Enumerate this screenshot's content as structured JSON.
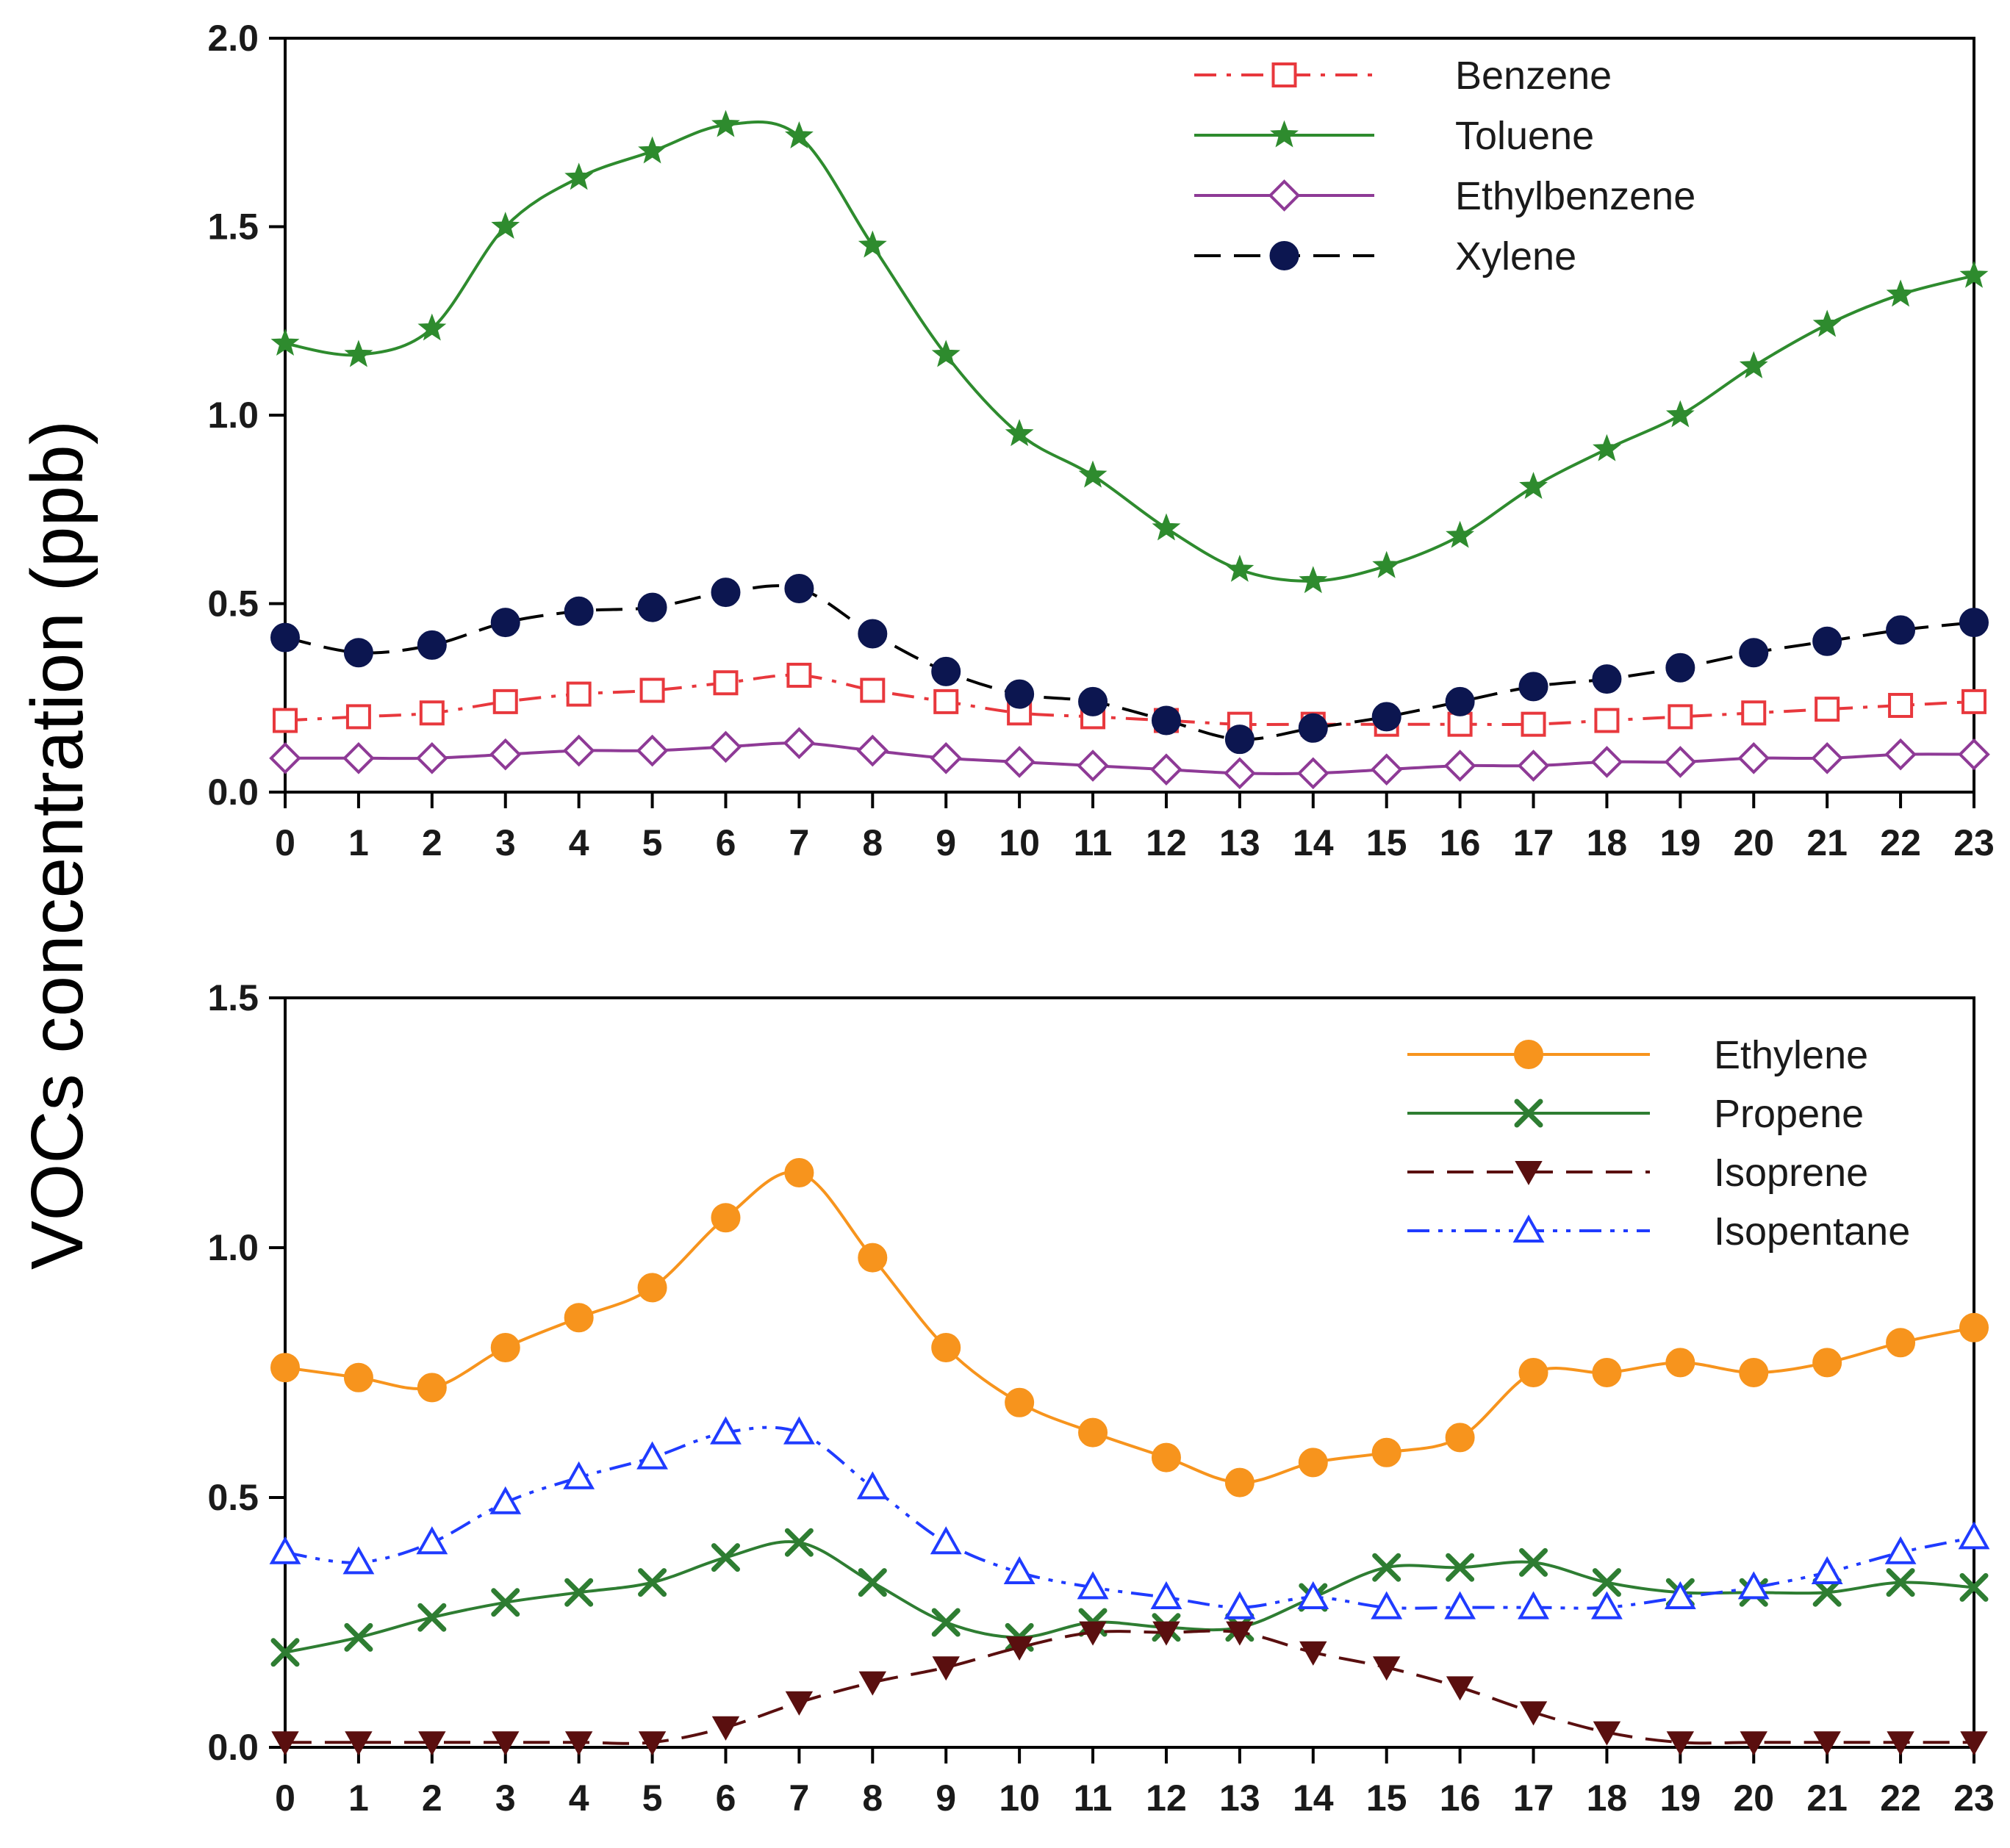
{
  "shared_ylabel": "VOCs concentration (ppb)",
  "chart_data": [
    {
      "type": "line",
      "title": "",
      "xlabel": "",
      "ylabel": "VOCs concentration (ppb)",
      "xlim": [
        0,
        23
      ],
      "ylim": [
        0,
        2.0
      ],
      "x": [
        0,
        1,
        2,
        3,
        4,
        5,
        6,
        7,
        8,
        9,
        10,
        11,
        12,
        13,
        14,
        15,
        16,
        17,
        18,
        19,
        20,
        21,
        22,
        23
      ],
      "x_tick_labels": [
        "0",
        "1",
        "2",
        "3",
        "4",
        "5",
        "6",
        "7",
        "8",
        "9",
        "10",
        "11",
        "12",
        "13",
        "14",
        "15",
        "16",
        "17",
        "18",
        "19",
        "20",
        "21",
        "22",
        "23"
      ],
      "y_ticks": [
        0,
        0.5,
        1.0,
        1.5,
        2.0
      ],
      "y_tick_labels": [
        "0.0",
        "0.5",
        "1.0",
        "1.5",
        "2.0"
      ],
      "grid": false,
      "legend_position": "top-right",
      "series": [
        {
          "name": "Benzene",
          "color": "#e8383d",
          "dash": "dashdot",
          "marker": "square-open",
          "values": [
            0.19,
            0.2,
            0.21,
            0.24,
            0.26,
            0.27,
            0.29,
            0.31,
            0.27,
            0.24,
            0.21,
            0.2,
            0.19,
            0.18,
            0.18,
            0.18,
            0.18,
            0.18,
            0.19,
            0.2,
            0.21,
            0.22,
            0.23,
            0.24
          ]
        },
        {
          "name": "Toluene",
          "color": "#2e8b2e",
          "dash": "solid",
          "marker": "star",
          "values": [
            1.19,
            1.16,
            1.23,
            1.5,
            1.63,
            1.7,
            1.77,
            1.74,
            1.45,
            1.16,
            0.95,
            0.84,
            0.7,
            0.59,
            0.56,
            0.6,
            0.68,
            0.81,
            0.91,
            1.0,
            1.13,
            1.24,
            1.32,
            1.37
          ]
        },
        {
          "name": "Ethylbenzene",
          "color": "#8e3a96",
          "dash": "solid",
          "marker": "diamond-open",
          "values": [
            0.09,
            0.09,
            0.09,
            0.1,
            0.11,
            0.11,
            0.12,
            0.13,
            0.11,
            0.09,
            0.08,
            0.07,
            0.06,
            0.05,
            0.05,
            0.06,
            0.07,
            0.07,
            0.08,
            0.08,
            0.09,
            0.09,
            0.1,
            0.1
          ]
        },
        {
          "name": "Xylene",
          "color": "#0c1650",
          "line_color": "#000000",
          "dash": "dashed",
          "marker": "circle",
          "values": [
            0.41,
            0.37,
            0.39,
            0.45,
            0.48,
            0.49,
            0.53,
            0.54,
            0.42,
            0.32,
            0.26,
            0.24,
            0.19,
            0.14,
            0.17,
            0.2,
            0.24,
            0.28,
            0.3,
            0.33,
            0.37,
            0.4,
            0.43,
            0.45
          ]
        }
      ]
    },
    {
      "type": "line",
      "title": "",
      "xlabel": "",
      "ylabel": "VOCs concentration (ppb)",
      "xlim": [
        0,
        23
      ],
      "ylim": [
        0,
        1.5
      ],
      "x": [
        0,
        1,
        2,
        3,
        4,
        5,
        6,
        7,
        8,
        9,
        10,
        11,
        12,
        13,
        14,
        15,
        16,
        17,
        18,
        19,
        20,
        21,
        22,
        23
      ],
      "x_tick_labels": [
        "0",
        "1",
        "2",
        "3",
        "4",
        "5",
        "6",
        "7",
        "8",
        "9",
        "10",
        "11",
        "12",
        "13",
        "14",
        "15",
        "16",
        "17",
        "18",
        "19",
        "20",
        "21",
        "22",
        "23"
      ],
      "y_ticks": [
        0,
        0.5,
        1.0,
        1.5
      ],
      "y_tick_labels": [
        "0.0",
        "0.5",
        "1.0",
        "1.5"
      ],
      "grid": false,
      "legend_position": "top-right",
      "series": [
        {
          "name": "Ethylene",
          "color": "#f7941d",
          "dash": "solid",
          "marker": "circle",
          "values": [
            0.76,
            0.74,
            0.72,
            0.8,
            0.86,
            0.92,
            1.06,
            1.15,
            0.98,
            0.8,
            0.69,
            0.63,
            0.58,
            0.53,
            0.57,
            0.59,
            0.62,
            0.75,
            0.75,
            0.77,
            0.75,
            0.77,
            0.81,
            0.84
          ]
        },
        {
          "name": "Propene",
          "color": "#2e7d32",
          "dash": "solid",
          "marker": "x",
          "values": [
            0.19,
            0.22,
            0.26,
            0.29,
            0.31,
            0.33,
            0.38,
            0.41,
            0.33,
            0.25,
            0.22,
            0.25,
            0.24,
            0.24,
            0.3,
            0.36,
            0.36,
            0.37,
            0.33,
            0.31,
            0.31,
            0.31,
            0.33,
            0.32
          ]
        },
        {
          "name": "Isoprene",
          "color": "#5a0f0f",
          "dash": "dashed",
          "marker": "triangle-down",
          "values": [
            0.01,
            0.01,
            0.01,
            0.01,
            0.01,
            0.01,
            0.04,
            0.09,
            0.13,
            0.16,
            0.2,
            0.23,
            0.23,
            0.23,
            0.19,
            0.16,
            0.12,
            0.07,
            0.03,
            0.01,
            0.01,
            0.01,
            0.01,
            0.01
          ]
        },
        {
          "name": "Isopentane",
          "color": "#1f3bff",
          "dash": "dashdotdot",
          "marker": "triangle-open",
          "values": [
            0.39,
            0.37,
            0.41,
            0.49,
            0.54,
            0.58,
            0.63,
            0.63,
            0.52,
            0.41,
            0.35,
            0.32,
            0.3,
            0.28,
            0.3,
            0.28,
            0.28,
            0.28,
            0.28,
            0.3,
            0.32,
            0.35,
            0.39,
            0.42
          ]
        }
      ]
    }
  ]
}
